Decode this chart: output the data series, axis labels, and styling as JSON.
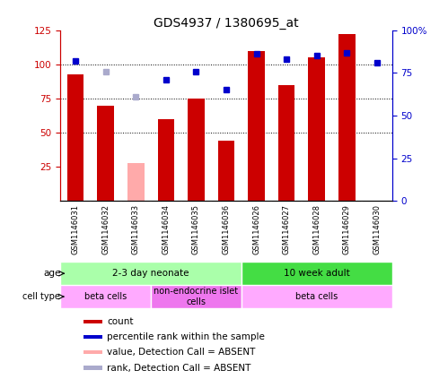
{
  "title": "GDS4937 / 1380695_at",
  "samples": [
    "GSM1146031",
    "GSM1146032",
    "GSM1146033",
    "GSM1146034",
    "GSM1146035",
    "GSM1146036",
    "GSM1146026",
    "GSM1146027",
    "GSM1146028",
    "GSM1146029",
    "GSM1146030"
  ],
  "count_values": [
    93,
    70,
    null,
    60,
    75,
    44,
    110,
    85,
    105,
    122,
    null
  ],
  "count_absent": [
    null,
    null,
    28,
    null,
    null,
    null,
    null,
    null,
    null,
    null,
    null
  ],
  "rank_values": [
    82,
    null,
    null,
    71,
    76,
    65,
    86,
    83,
    85,
    87,
    81
  ],
  "rank_absent": [
    null,
    76,
    61,
    null,
    null,
    null,
    null,
    null,
    null,
    null,
    null
  ],
  "ylim_left": [
    0,
    125
  ],
  "ylim_right": [
    0,
    100
  ],
  "left_ticks": [
    25,
    50,
    75,
    100,
    125
  ],
  "right_ticks": [
    0,
    25,
    50,
    75,
    100
  ],
  "right_tick_labels": [
    "0",
    "25",
    "50",
    "75",
    "100%"
  ],
  "bar_color": "#cc0000",
  "bar_absent_color": "#ffaaaa",
  "dot_color": "#0000cc",
  "dot_absent_color": "#aaaacc",
  "age_groups": [
    {
      "label": "2-3 day neonate",
      "start": 0,
      "end": 6,
      "color": "#aaffaa"
    },
    {
      "label": "10 week adult",
      "start": 6,
      "end": 11,
      "color": "#44dd44"
    }
  ],
  "cell_type_groups": [
    {
      "label": "beta cells",
      "start": 0,
      "end": 3,
      "color": "#ffaaff"
    },
    {
      "label": "non-endocrine islet\ncells",
      "start": 3,
      "end": 6,
      "color": "#ee77ee"
    },
    {
      "label": "beta cells",
      "start": 6,
      "end": 11,
      "color": "#ffaaff"
    }
  ],
  "legend_items": [
    {
      "label": "count",
      "color": "#cc0000"
    },
    {
      "label": "percentile rank within the sample",
      "color": "#0000cc"
    },
    {
      "label": "value, Detection Call = ABSENT",
      "color": "#ffaaaa"
    },
    {
      "label": "rank, Detection Call = ABSENT",
      "color": "#aaaacc"
    }
  ],
  "left_axis_color": "#cc0000",
  "right_axis_color": "#0000cc",
  "tick_bg_color": "#cccccc",
  "plot_bg_color": "#ffffff"
}
